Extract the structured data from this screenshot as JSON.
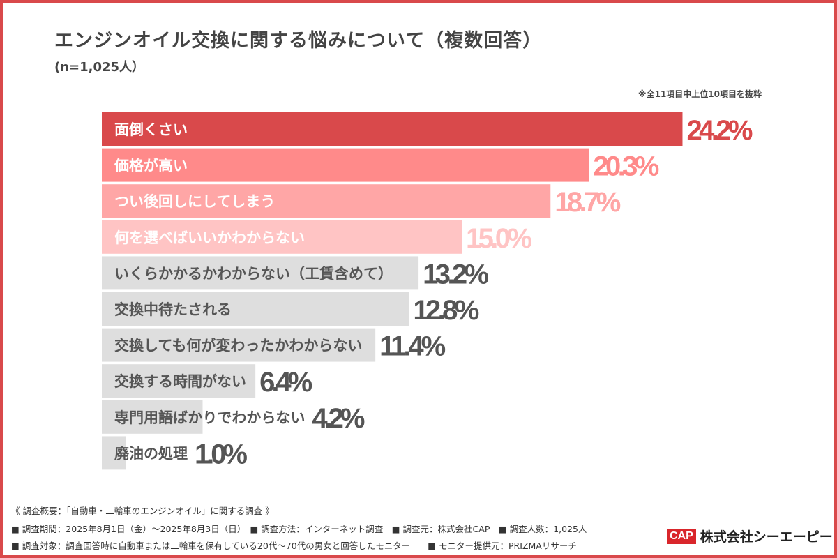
{
  "header": {
    "title": "エンジンオイル交換に関する悩みについて（複数回答）",
    "sample": "(n=1,025人）",
    "note": "※全11項目中上位10項目を抜粋"
  },
  "chart_data": {
    "type": "bar",
    "orientation": "horizontal",
    "title": "エンジンオイル交換に関する悩みについて（複数回答）",
    "categories": [
      "面倒くさい",
      "価格が高い",
      "つい後回しにしてしまう",
      "何を選べばいいかわからない",
      "いくらかかるかわからない（工賃含めて）",
      "交換中待たされる",
      "交換しても何が変わったかわからない",
      "交換する時間がない",
      "専門用語ばかりでわからない",
      "廃油の処理"
    ],
    "values": [
      24.2,
      20.3,
      18.7,
      15.0,
      13.2,
      12.8,
      11.4,
      6.4,
      4.2,
      1.0
    ],
    "value_labels": [
      "24.2%",
      "20.3%",
      "18.7%",
      "15.0%",
      "13.2%",
      "12.8%",
      "11.4%",
      "6.4%",
      "4.2%",
      "1.0%"
    ],
    "unit": "%",
    "bar_colors": [
      "#d9494b",
      "#ff8a8a",
      "#ffa6a6",
      "#ffc4c4",
      "#dedede",
      "#dedede",
      "#dedede",
      "#dedede",
      "#dedede",
      "#dedede"
    ],
    "label_colors": [
      "#ffffff",
      "#ffffff",
      "#ffffff",
      "#ffffff",
      "#555555",
      "#555555",
      "#555555",
      "#555555",
      "#555555",
      "#555555"
    ],
    "value_colors": [
      "#d9494b",
      "#ff8a8a",
      "#ffa6a6",
      "#ffc4c4",
      "#555555",
      "#555555",
      "#555555",
      "#555555",
      "#555555",
      "#555555"
    ],
    "grid": false,
    "legend": "none"
  },
  "footer": {
    "line1": "《 調査概要：「自動車・二輪車のエンジンオイル」に関する調査 》",
    "line2": "■ 調査期間：2025年8月1日（金）～2025年8月3日（日）　■ 調査方法：インターネット調査　■ 調査元：株式会社CAP　■ 調査人数：1,025人",
    "line3": "■ 調査対象：調査回答時に自動車または二輪車を保有している20代～70代の男女と回答したモニター　　■ モニター提供元：PRIZMAリサーチ"
  },
  "logo": {
    "mark": "CAP",
    "company": "株式会社シーエーピー"
  },
  "colors": {
    "frame": "#d9494b",
    "text": "#444444"
  }
}
